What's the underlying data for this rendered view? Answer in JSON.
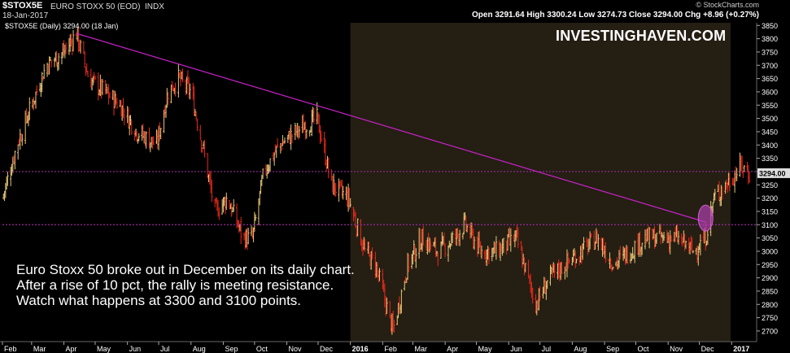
{
  "header": {
    "symbol": "$STOX5E",
    "name": "EURO STOXX 50 (EOD)",
    "exchange": "INDX",
    "date": "18-Jan-2017",
    "source": "© StockCharts.com",
    "quote": "Open 3291.64  High 3300.24  Low 3274.73  Close 3294.00  Chg +8.96 (+0.27%)",
    "legend": "$STOX5E (Daily) 3294.00 (18 Jan)"
  },
  "watermark": "INVESTINGHAVEN.COM",
  "annotation": "Euro Stoxx 50 broke out in December on its daily chart. After a rise of 10 pct, the rally is meeting resistance. Watch what happens at 3300 and 3100 points.",
  "colors": {
    "background": "#000000",
    "shaded_region": "#241e13",
    "up_bar": "#e8c878",
    "down_bar": "#e8281c",
    "trendline": "#cc22cc",
    "level_line": "#9a2a9a",
    "breakout_marker": "#b040b0",
    "axis_text": "#ffffff"
  },
  "chart_data": {
    "type": "ohlc",
    "title": "$STOX5E (Daily) 3294.00 (18 Jan)",
    "x_axis": {
      "type": "date",
      "range": [
        "2015-02-01",
        "2017-01-25"
      ],
      "tick_labels": [
        "Feb",
        "Mar",
        "Apr",
        "May",
        "Jun",
        "Jul",
        "Aug",
        "Sep",
        "Oct",
        "Nov",
        "Dec",
        "2016",
        "Feb",
        "Mar",
        "Apr",
        "May",
        "Jun",
        "Jul",
        "Aug",
        "Sep",
        "Oct",
        "Nov",
        "Dec",
        "2017"
      ],
      "tick_dates": [
        "2015-02-01",
        "2015-03-01",
        "2015-04-01",
        "2015-05-01",
        "2015-06-01",
        "2015-07-01",
        "2015-08-01",
        "2015-09-01",
        "2015-10-01",
        "2015-11-01",
        "2015-12-01",
        "2016-01-01",
        "2016-02-01",
        "2016-03-01",
        "2016-04-01",
        "2016-05-01",
        "2016-06-01",
        "2016-07-01",
        "2016-08-01",
        "2016-09-01",
        "2016-10-01",
        "2016-11-01",
        "2016-12-01",
        "2017-01-01"
      ]
    },
    "y_axis": {
      "range": [
        2660,
        3860
      ],
      "side": "right",
      "ticks": [
        2700,
        2750,
        2800,
        2850,
        2900,
        2950,
        3000,
        3050,
        3100,
        3150,
        3200,
        3250,
        3300,
        3350,
        3400,
        3450,
        3500,
        3550,
        3600,
        3650,
        3700,
        3750,
        3800,
        3850
      ]
    },
    "last_value_label": "3294.00",
    "shaded_region": {
      "from": "2016-01-01",
      "to": "2016-12-31"
    },
    "trendline": {
      "from": {
        "date": "2015-04-13",
        "value": 3820
      },
      "to": {
        "date": "2016-12-07",
        "value": 3110
      }
    },
    "horizontal_levels": [
      3300,
      3100
    ],
    "breakout_marker": {
      "date": "2016-12-07",
      "value": 3125
    },
    "series": [
      {
        "date_points": [
          "2015-02-01",
          "2015-02-15",
          "2015-03-01",
          "2015-03-15",
          "2015-04-01",
          "2015-04-13",
          "2015-04-25",
          "2015-05-10",
          "2015-05-25",
          "2015-06-10",
          "2015-06-29",
          "2015-07-10",
          "2015-07-20",
          "2015-08-01",
          "2015-08-12",
          "2015-08-24",
          "2015-09-05",
          "2015-09-20",
          "2015-09-29",
          "2015-10-10",
          "2015-10-25",
          "2015-11-10",
          "2015-11-30",
          "2015-12-14",
          "2015-12-30",
          "2016-01-15",
          "2016-01-25",
          "2016-02-11",
          "2016-02-25",
          "2016-03-10",
          "2016-03-25",
          "2016-04-10",
          "2016-04-20",
          "2016-05-05",
          "2016-05-20",
          "2016-06-08",
          "2016-06-27",
          "2016-07-10",
          "2016-07-25",
          "2016-08-10",
          "2016-08-25",
          "2016-09-10",
          "2016-09-25",
          "2016-10-10",
          "2016-10-25",
          "2016-11-10",
          "2016-11-25",
          "2016-12-07",
          "2016-12-15",
          "2016-12-31",
          "2017-01-10",
          "2017-01-18"
        ],
        "close_path": [
          3200,
          3400,
          3550,
          3700,
          3750,
          3820,
          3650,
          3600,
          3550,
          3450,
          3400,
          3600,
          3650,
          3600,
          3400,
          3150,
          3200,
          3050,
          3050,
          3300,
          3400,
          3450,
          3500,
          3250,
          3200,
          3000,
          2950,
          2700,
          2950,
          3050,
          3000,
          3050,
          3100,
          3000,
          3000,
          3050,
          2800,
          2900,
          2950,
          3000,
          3050,
          2950,
          3000,
          3050,
          3050,
          3050,
          3000,
          3050,
          3200,
          3270,
          3320,
          3294
        ]
      }
    ]
  }
}
